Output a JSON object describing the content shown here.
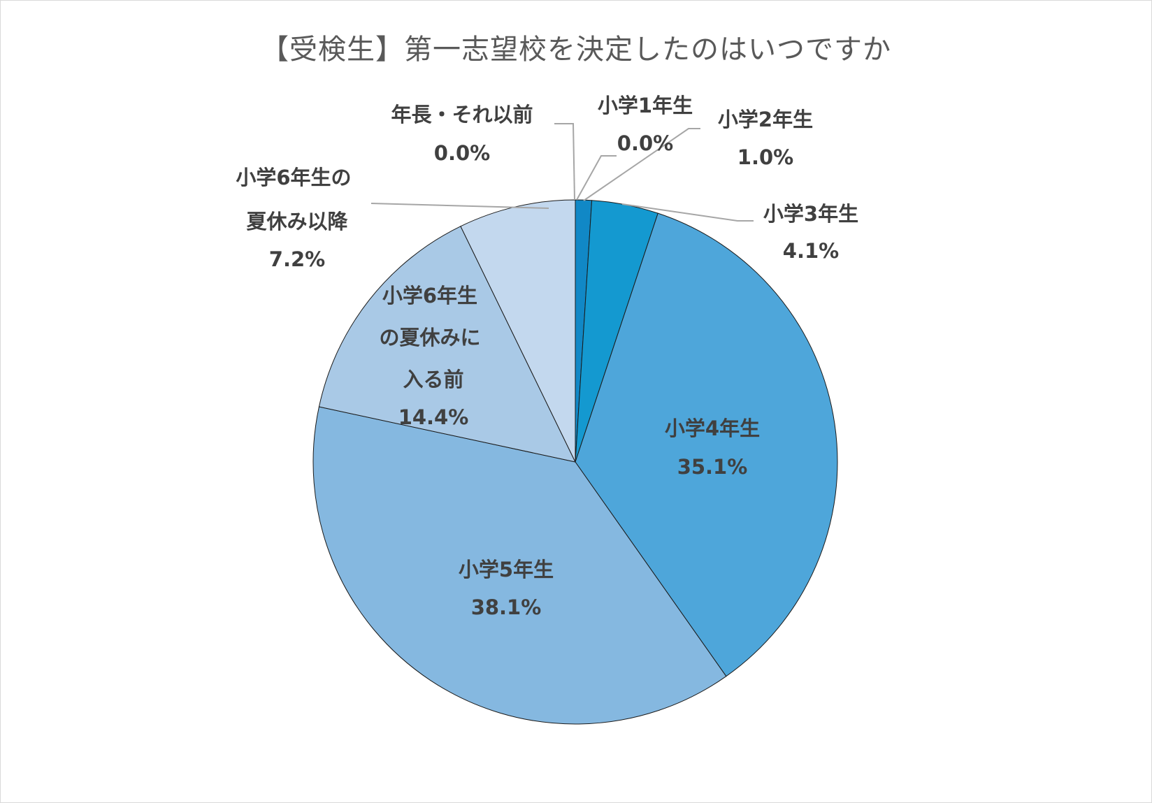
{
  "chart_data": {
    "type": "pie",
    "title": "【受検生】第一志望校を決定したのはいつですか",
    "slices": [
      {
        "label": "年長・それ以前",
        "value": 0.0,
        "value_label": "0.0%",
        "color": "#0b6ba6"
      },
      {
        "label": "小学1年生",
        "value": 0.0,
        "value_label": "0.0%",
        "color": "#0f7dbf"
      },
      {
        "label": "小学2年生",
        "value": 1.0,
        "value_label": "1.0%",
        "color": "#1188c6"
      },
      {
        "label": "小学3年生",
        "value": 4.1,
        "value_label": "4.1%",
        "color": "#1499d0"
      },
      {
        "label": "小学4年生",
        "value": 35.1,
        "value_label": "35.1%",
        "color": "#4ea6da"
      },
      {
        "label": "小学5年生",
        "value": 38.1,
        "value_label": "38.1%",
        "color": "#85b8e0"
      },
      {
        "label": "小学6年生の夏休みに入る前",
        "value": 14.4,
        "value_label": "14.4%",
        "color": "#a9c9e6"
      },
      {
        "label": "小学6年生の夏休み以降",
        "value": 7.2,
        "value_label": "7.2%",
        "color": "#c3d8ee"
      }
    ]
  }
}
